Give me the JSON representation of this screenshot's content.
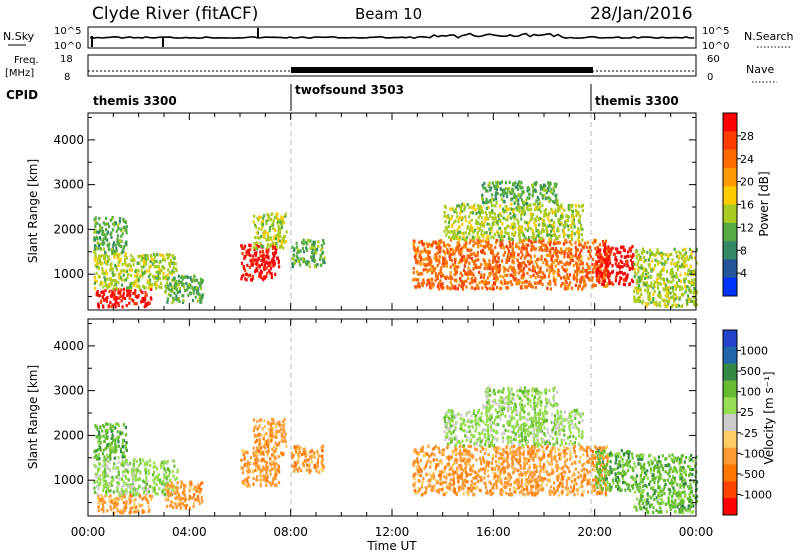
{
  "header": {
    "site": "Clyde River (fitACF)",
    "beam": "Beam 10",
    "date": "28/Jan/2016"
  },
  "top_panels": {
    "nsky_label": "N.Sky",
    "nsearch_label": "N.Search",
    "nsky_ticks": [
      "10^5",
      "10^0"
    ],
    "nsearch_ticks": [
      "10^5",
      "10^0"
    ],
    "freq_label_1": "Freq.",
    "freq_label_2": "[MHz]",
    "freq_ticks": [
      "18",
      "8"
    ],
    "nave_label": "Nave",
    "nave_ticks": [
      "60",
      "0"
    ],
    "cpid_label": "CPID",
    "cpid_segments": [
      {
        "name": "themis 3300",
        "start_hour": 0,
        "end_hour": 8
      },
      {
        "name": "twofsound 3503",
        "start_hour": 8,
        "end_hour": 20
      },
      {
        "name": "themis 3300",
        "start_hour": 20,
        "end_hour": 24
      }
    ]
  },
  "chart_data": [
    {
      "type": "heatmap",
      "title": "",
      "ylabel": "Slant Range [km]",
      "xlabel": "",
      "xlim_hours": [
        0,
        24
      ],
      "ylim": [
        200,
        4600
      ],
      "yticks": [
        1000,
        2000,
        3000,
        4000
      ],
      "xticks": [
        "00:00",
        "04:00",
        "08:00",
        "12:00",
        "16:00",
        "20:00",
        "00:00"
      ],
      "colorbar": {
        "label": "Power [dB]",
        "ticks": [
          "28",
          "24",
          "20",
          "16",
          "12",
          "8",
          "4"
        ],
        "colors": [
          "#ff0000",
          "#ff3b00",
          "#ff6a00",
          "#ff9900",
          "#ffcc00",
          "#aacc22",
          "#55aa44",
          "#338866",
          "#225599",
          "#0033ff"
        ]
      },
      "echo_regions": [
        {
          "t": [
            0.3,
            2.5
          ],
          "r": [
            300,
            700
          ],
          "level": 28
        },
        {
          "t": [
            0.2,
            3.5
          ],
          "r": [
            700,
            1500
          ],
          "level": 16
        },
        {
          "t": [
            0.2,
            1.5
          ],
          "r": [
            1500,
            2300
          ],
          "level": 12
        },
        {
          "t": [
            3.0,
            4.5
          ],
          "r": [
            400,
            1000
          ],
          "level": 12
        },
        {
          "t": [
            6.0,
            7.5
          ],
          "r": [
            900,
            1700
          ],
          "level": 28
        },
        {
          "t": [
            6.5,
            7.8
          ],
          "r": [
            1600,
            2400
          ],
          "level": 16
        },
        {
          "t": [
            8.0,
            9.3
          ],
          "r": [
            1200,
            1800
          ],
          "level": 12
        },
        {
          "t": [
            12.8,
            20.5
          ],
          "r": [
            700,
            1800
          ],
          "level": 24
        },
        {
          "t": [
            14.0,
            19.5
          ],
          "r": [
            1800,
            2600
          ],
          "level": 16
        },
        {
          "t": [
            15.5,
            18.5
          ],
          "r": [
            2600,
            3100
          ],
          "level": 12
        },
        {
          "t": [
            20.0,
            21.5
          ],
          "r": [
            800,
            1700
          ],
          "level": 28
        },
        {
          "t": [
            21.5,
            24.0
          ],
          "r": [
            300,
            1600
          ],
          "level": 16
        }
      ]
    },
    {
      "type": "heatmap",
      "title": "",
      "ylabel": "Slant Range [km]",
      "xlabel": "Time UT",
      "xlim_hours": [
        0,
        24
      ],
      "ylim": [
        200,
        4600
      ],
      "yticks": [
        1000,
        2000,
        3000,
        4000
      ],
      "xticks": [
        "00:00",
        "04:00",
        "08:00",
        "12:00",
        "16:00",
        "20:00",
        "00:00"
      ],
      "colorbar": {
        "label": "Velocity [m s⁻¹]",
        "ticks": [
          "1000",
          "500",
          "100",
          "25",
          "-25",
          "-100",
          "-500",
          "-1000"
        ],
        "colors": [
          "#2244cc",
          "#2266aa",
          "#338844",
          "#66bb33",
          "#99dd55",
          "#cccccc",
          "#ffcc66",
          "#ff9933",
          "#ff7700",
          "#ff4400",
          "#ff0000"
        ]
      },
      "echo_regions": [
        {
          "t": [
            0.3,
            2.5
          ],
          "r": [
            300,
            700
          ],
          "level": -100
        },
        {
          "t": [
            0.2,
            3.5
          ],
          "r": [
            700,
            1500
          ],
          "level": 25
        },
        {
          "t": [
            0.2,
            1.5
          ],
          "r": [
            1500,
            2300
          ],
          "level": 100
        },
        {
          "t": [
            3.0,
            4.5
          ],
          "r": [
            400,
            1000
          ],
          "level": -100
        },
        {
          "t": [
            6.0,
            7.5
          ],
          "r": [
            900,
            1700
          ],
          "level": -100
        },
        {
          "t": [
            6.5,
            7.8
          ],
          "r": [
            1600,
            2400
          ],
          "level": -100
        },
        {
          "t": [
            8.0,
            9.3
          ],
          "r": [
            1200,
            1800
          ],
          "level": -100
        },
        {
          "t": [
            12.8,
            20.5
          ],
          "r": [
            700,
            1800
          ],
          "level": -100
        },
        {
          "t": [
            14.0,
            19.5
          ],
          "r": [
            1800,
            2600
          ],
          "level": 25
        },
        {
          "t": [
            15.5,
            18.5
          ],
          "r": [
            2600,
            3100
          ],
          "level": 25
        },
        {
          "t": [
            20.0,
            21.5
          ],
          "r": [
            800,
            1700
          ],
          "level": 100
        },
        {
          "t": [
            21.5,
            24.0
          ],
          "r": [
            300,
            1600
          ],
          "level": 100
        }
      ]
    }
  ]
}
